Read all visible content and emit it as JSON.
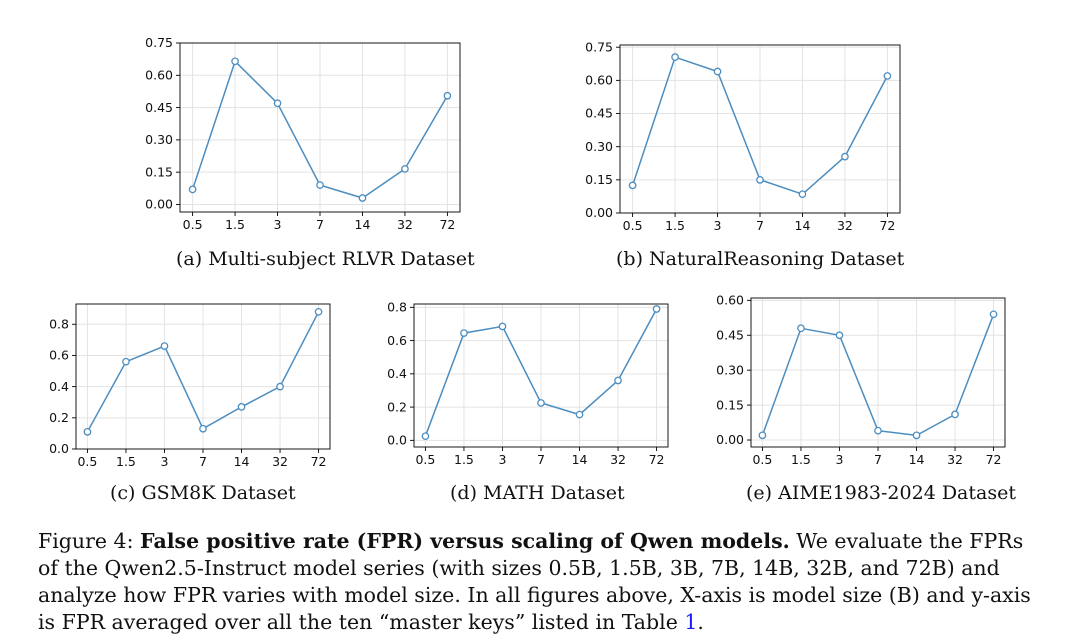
{
  "charts": [
    {
      "caption": "(a) Multi-subject RLVR Dataset"
    },
    {
      "caption": "(b) NaturalReasoning Dataset"
    },
    {
      "caption": "(c) GSM8K Dataset"
    },
    {
      "caption": "(d) MATH Dataset"
    },
    {
      "caption": "(e) AIME1983-2024 Dataset"
    }
  ],
  "chart_data": [
    {
      "type": "line",
      "title": "(a) Multi-subject RLVR Dataset",
      "categories": [
        "0.5",
        "1.5",
        "3",
        "7",
        "14",
        "32",
        "72"
      ],
      "values": [
        0.07,
        0.665,
        0.47,
        0.09,
        0.03,
        0.165,
        0.505
      ],
      "yticks": [
        "0.00",
        "0.15",
        "0.30",
        "0.45",
        "0.60",
        "0.75"
      ],
      "ylim": [
        -0.035,
        0.75
      ],
      "grid": true,
      "color": "#4c8dc0"
    },
    {
      "type": "line",
      "title": "(b) NaturalReasoning Dataset",
      "categories": [
        "0.5",
        "1.5",
        "3",
        "7",
        "14",
        "32",
        "72"
      ],
      "values": [
        0.125,
        0.705,
        0.64,
        0.15,
        0.085,
        0.255,
        0.62
      ],
      "yticks": [
        "0.00",
        "0.15",
        "0.30",
        "0.45",
        "0.60",
        "0.75"
      ],
      "ylim": [
        0.0,
        0.76
      ],
      "grid": true,
      "color": "#4c8dc0"
    },
    {
      "type": "line",
      "title": "(c) GSM8K Dataset",
      "categories": [
        "0.5",
        "1.5",
        "3",
        "7",
        "14",
        "32",
        "72"
      ],
      "values": [
        0.11,
        0.56,
        0.66,
        0.13,
        0.27,
        0.4,
        0.88
      ],
      "yticks": [
        "0.0",
        "0.2",
        "0.4",
        "0.6",
        "0.8"
      ],
      "ylim": [
        0.0,
        0.93
      ],
      "grid": true,
      "color": "#4c8dc0"
    },
    {
      "type": "line",
      "title": "(d) MATH Dataset",
      "categories": [
        "0.5",
        "1.5",
        "3",
        "7",
        "14",
        "32",
        "72"
      ],
      "values": [
        0.025,
        0.645,
        0.685,
        0.225,
        0.155,
        0.36,
        0.79
      ],
      "yticks": [
        "0.0",
        "0.2",
        "0.4",
        "0.6",
        "0.8"
      ],
      "ylim": [
        -0.04,
        0.82
      ],
      "grid": true,
      "color": "#4c8dc0"
    },
    {
      "type": "line",
      "title": "(e) AIME1983-2024 Dataset",
      "categories": [
        "0.5",
        "1.5",
        "3",
        "7",
        "14",
        "32",
        "72"
      ],
      "values": [
        0.02,
        0.48,
        0.45,
        0.04,
        0.02,
        0.11,
        0.54
      ],
      "yticks": [
        "0.00",
        "0.15",
        "0.30",
        "0.45",
        "0.60"
      ],
      "ylim": [
        -0.03,
        0.61
      ],
      "grid": true,
      "color": "#4c8dc0"
    }
  ],
  "figure_caption": {
    "label": "Figure 4: ",
    "bold": "False positive rate (FPR) versus scaling of Qwen models.",
    "text": " We evaluate the FPRs of the Qwen2.5-Instruct model series (with sizes 0.5B, 1.5B, 3B, 7B, 14B, 32B, and 72B) and analyze how FPR varies with model size. In all figures above, X-axis is model size (B) and y-axis is FPR averaged over all the ten “master keys” listed in Table ",
    "ref": "1",
    "end": "."
  }
}
